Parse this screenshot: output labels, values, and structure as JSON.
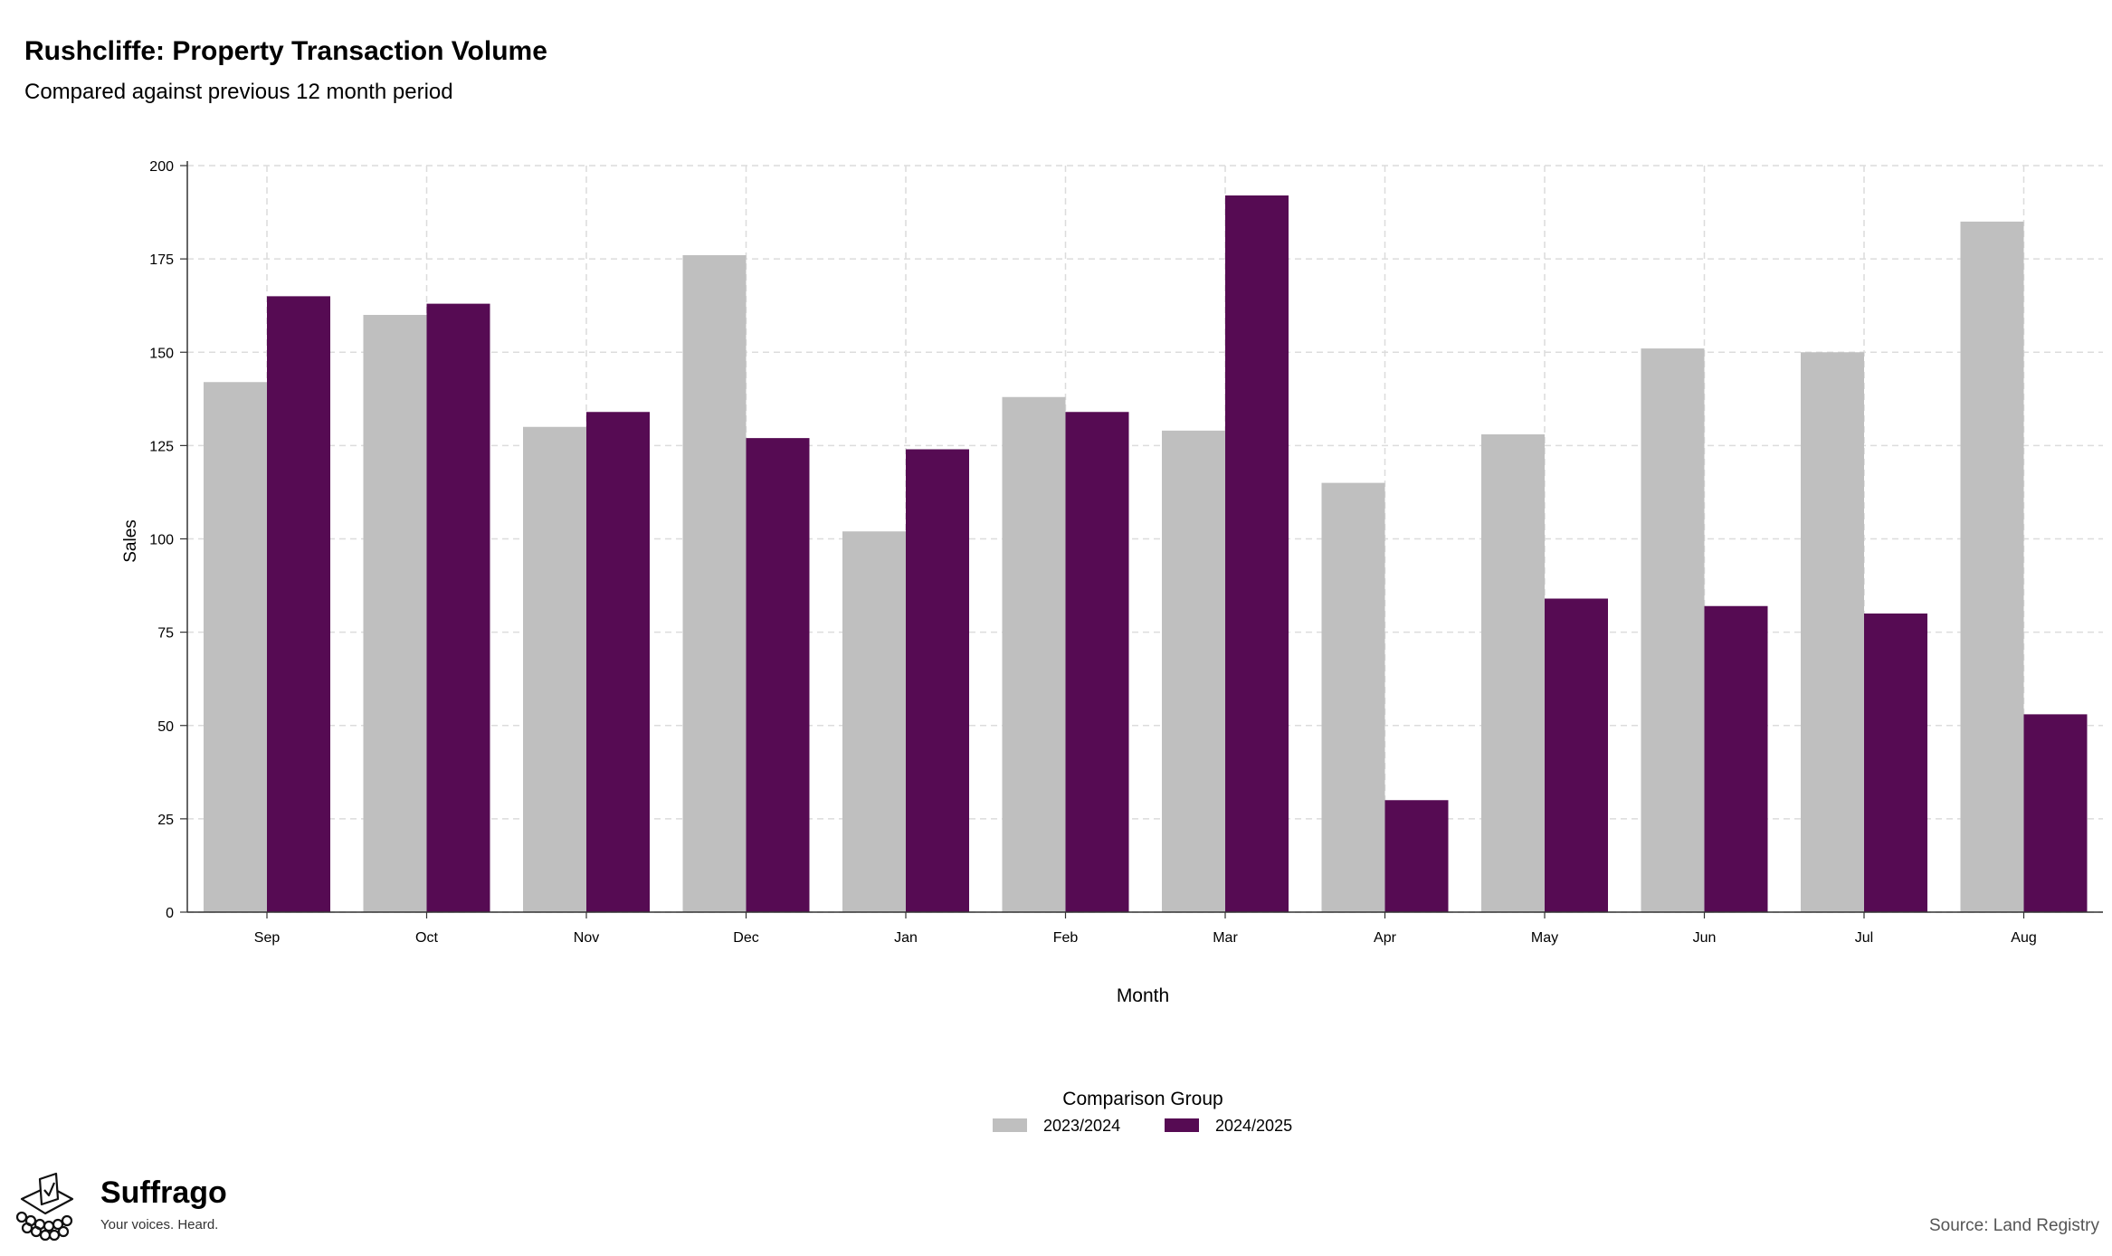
{
  "chart_data": {
    "type": "bar",
    "title": "Rushcliffe: Property Transaction Volume",
    "subtitle": "Compared against previous 12 month period",
    "xlabel": "Month",
    "ylabel": "Sales",
    "categories": [
      "Sep",
      "Oct",
      "Nov",
      "Dec",
      "Jan",
      "Feb",
      "Mar",
      "Apr",
      "May",
      "Jun",
      "Jul",
      "Aug"
    ],
    "series": [
      {
        "name": "2023/2024",
        "color": "#bfbfbf",
        "values": [
          142,
          160,
          130,
          176,
          102,
          138,
          129,
          115,
          128,
          151,
          150,
          185
        ]
      },
      {
        "name": "2024/2025",
        "color": "#560b53",
        "values": [
          165,
          163,
          134,
          127,
          124,
          134,
          192,
          30,
          84,
          82,
          80,
          53
        ]
      }
    ],
    "ylim": [
      0,
      200
    ],
    "yticks": [
      0,
      25,
      50,
      75,
      100,
      125,
      150,
      175,
      200
    ],
    "grid": true,
    "legend_title": "Comparison Group",
    "legend_position": "bottom"
  },
  "branding": {
    "logo_icon": "ballot-box-icon",
    "name": "Suffrago",
    "tagline": "Your voices. Heard."
  },
  "source": "Source: Land Registry"
}
